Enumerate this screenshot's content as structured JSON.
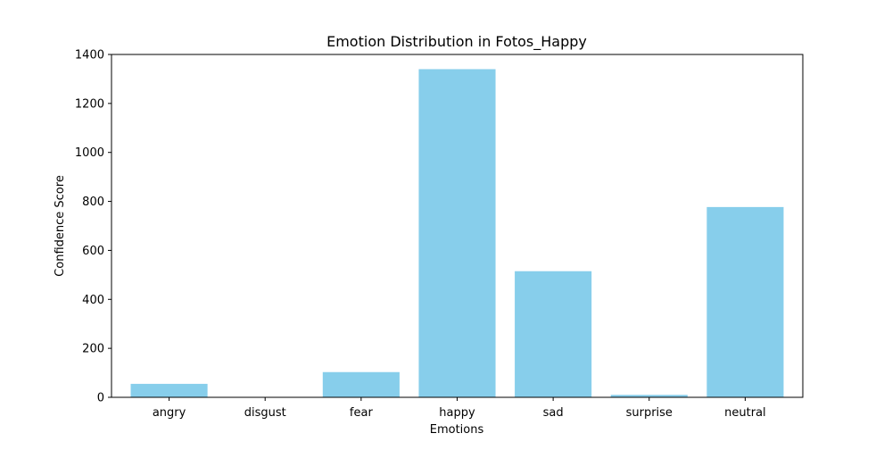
{
  "chart_data": {
    "type": "bar",
    "title": "Emotion Distribution in Fotos_Happy",
    "xlabel": "Emotions",
    "ylabel": "Confidence Score",
    "categories": [
      "angry",
      "disgust",
      "fear",
      "happy",
      "sad",
      "surprise",
      "neutral"
    ],
    "values": [
      55,
      0.5,
      103,
      1340,
      515,
      10,
      777
    ],
    "ylim": [
      0,
      1400
    ],
    "yticks": [
      0,
      200,
      400,
      600,
      800,
      1000,
      1200,
      1400
    ],
    "bar_color": "#87ceeb",
    "grid": false,
    "legend": "none"
  }
}
